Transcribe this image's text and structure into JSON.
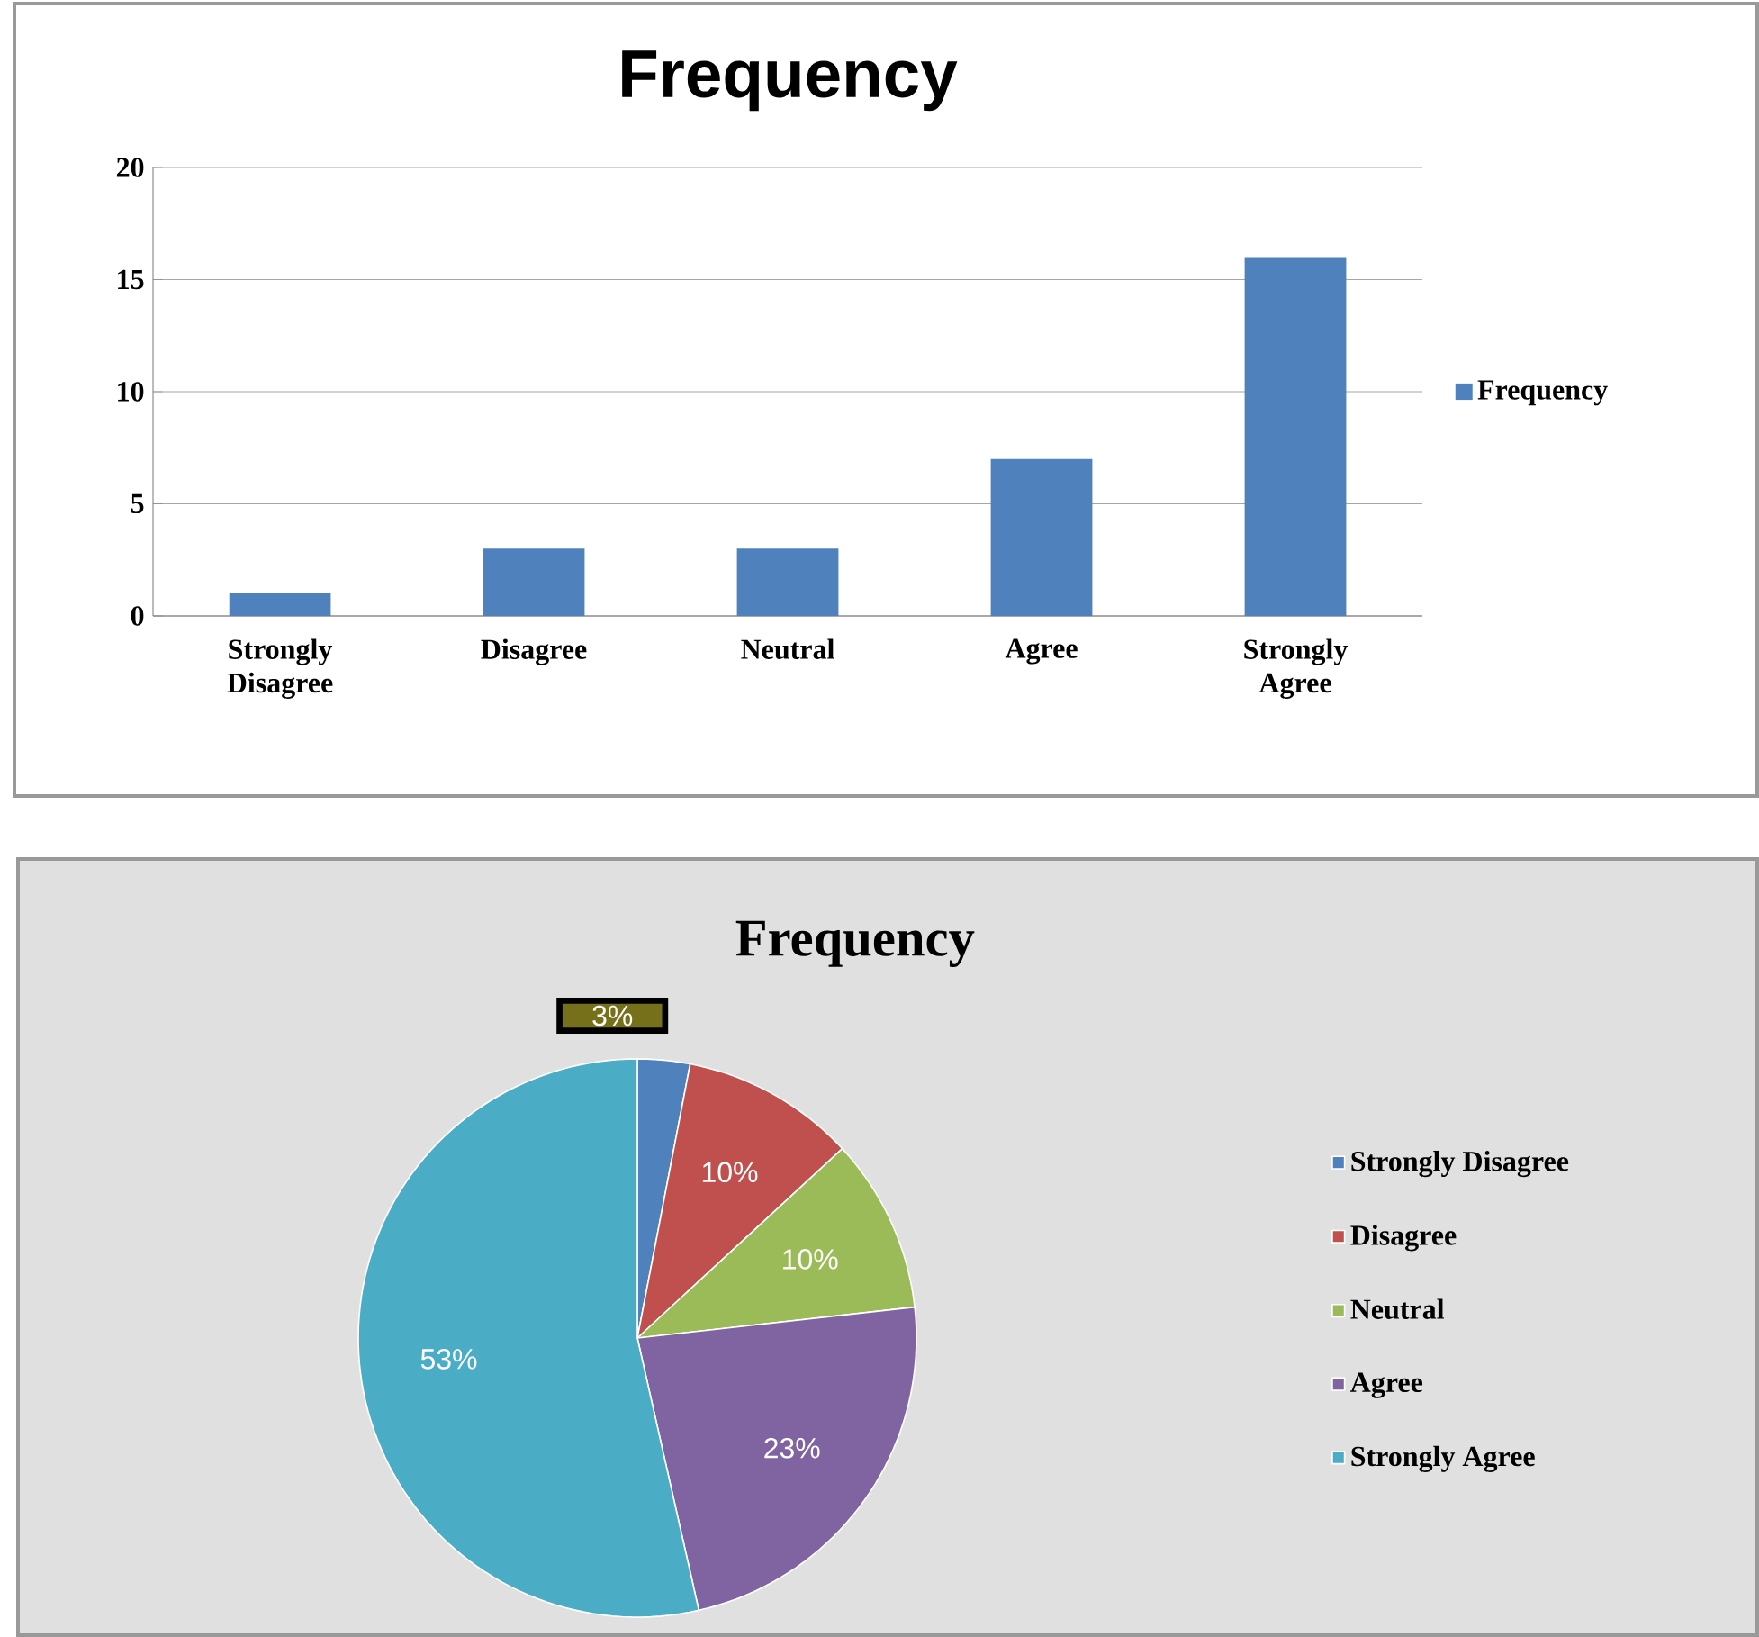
{
  "chart_data": [
    {
      "type": "bar",
      "title": "Frequency",
      "categories": [
        "Strongly Disagree",
        "Disagree",
        "Neutral",
        "Agree",
        "Strongly Agree"
      ],
      "series": [
        {
          "name": "Frequency",
          "color": "#4f81bd",
          "values": [
            1,
            3,
            3,
            7,
            16
          ]
        }
      ],
      "ylim": [
        0,
        20
      ],
      "yticks": [
        0,
        5,
        10,
        15,
        20
      ],
      "grid": "y",
      "legend": "right"
    },
    {
      "type": "pie",
      "title": "Frequency",
      "categories": [
        "Strongly Disagree",
        "Disagree",
        "Neutral",
        "Agree",
        "Strongly Agree"
      ],
      "values": [
        3,
        10,
        10,
        23,
        53
      ],
      "value_labels": [
        "3%",
        "10%",
        "10%",
        "23%",
        "53%"
      ],
      "colors": [
        "#4f81bd",
        "#c0504d",
        "#9bbb59",
        "#8064a2",
        "#4bacc6"
      ],
      "legend": "right"
    }
  ]
}
